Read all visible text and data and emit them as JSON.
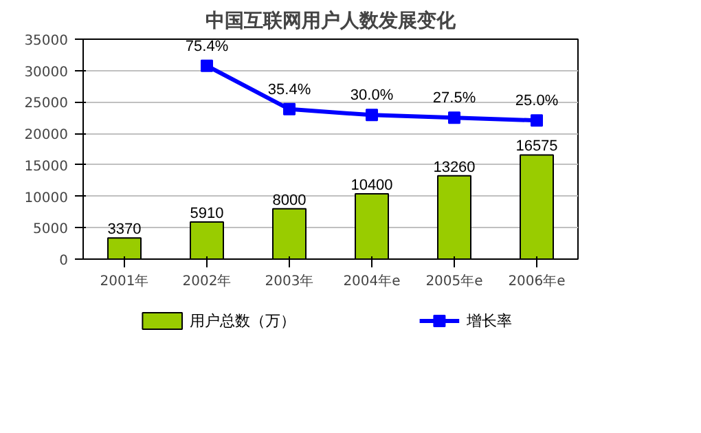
{
  "chart_data": {
    "type": "bar",
    "title": "中国互联网用户人数发展变化",
    "categories": [
      "2001年",
      "2002年",
      "2003年",
      "2004年e",
      "2005年e",
      "2006年e"
    ],
    "ylim": [
      0,
      35000
    ],
    "yticks": [
      0,
      5000,
      10000,
      15000,
      20000,
      25000,
      30000,
      35000
    ],
    "y2lim": [
      -103,
      100
    ],
    "series": [
      {
        "name": "用户总数（万）",
        "type": "bar",
        "color": "#99cc00",
        "values": [
          3370,
          5910,
          8000,
          10400,
          13260,
          16575
        ],
        "value_labels": [
          "3370",
          "5910",
          "8000",
          "10400",
          "13260",
          "16575"
        ]
      },
      {
        "name": "增长率",
        "type": "line",
        "axis": "y2",
        "color": "#0000ff",
        "marker": "square",
        "values": [
          null,
          75.4,
          35.4,
          30.0,
          27.5,
          25.0
        ],
        "value_labels": [
          null,
          "75.4%",
          "35.4%",
          "30.0%",
          "27.5%",
          "25.0%"
        ]
      }
    ],
    "grid": "y",
    "legend": "bottom"
  }
}
